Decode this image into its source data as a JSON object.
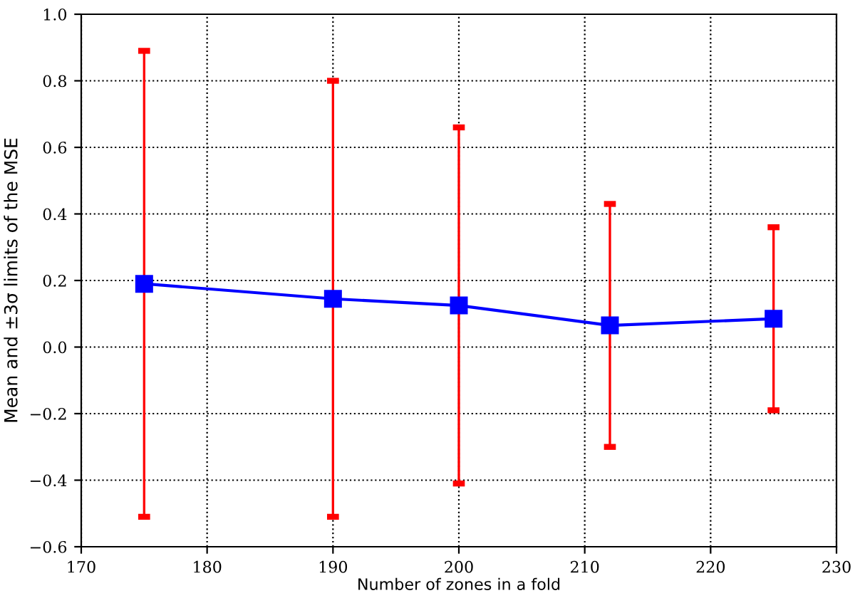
{
  "chart_data": {
    "type": "line",
    "xlabel": "Number of zones in a fold",
    "ylabel": "Mean and ±3σ limits of the MSE",
    "x": [
      175,
      190,
      200,
      212,
      225
    ],
    "series": [
      {
        "color": "#0000ff",
        "values": [
          0.19,
          0.145,
          0.125,
          0.065,
          0.085
        ],
        "errors": [
          0.7,
          0.655,
          0.535,
          0.365,
          0.275
        ]
      }
    ],
    "xlim": [
      170,
      230
    ],
    "xticks": [
      170,
      180,
      190,
      200,
      210,
      220,
      230
    ],
    "ylim": [
      -0.6,
      1.0
    ],
    "yticks": [
      {
        "value": -0.6,
        "label": "−0.6"
      },
      {
        "value": -0.4,
        "label": "−0.4"
      },
      {
        "value": -0.2,
        "label": "−0.2"
      },
      {
        "value": 0.0,
        "label": "0.0"
      },
      {
        "value": 0.2,
        "label": "0.2"
      },
      {
        "value": 0.4,
        "label": "0.4"
      },
      {
        "value": 0.6,
        "label": "0.6"
      },
      {
        "value": 0.8,
        "label": "0.8"
      },
      {
        "value": 1.0,
        "label": "1.0"
      }
    ],
    "grid": true,
    "marker": "square",
    "line_style": "solid"
  }
}
